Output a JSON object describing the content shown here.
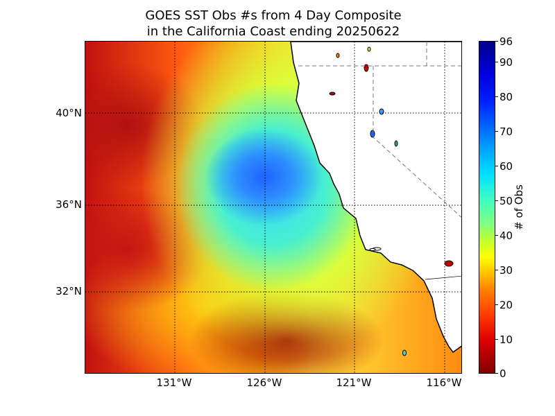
{
  "title": {
    "line1": "GOES SST Obs #s from 4 Day Composite",
    "line2": " in the California Coast ending 20250622"
  },
  "map": {
    "lat_labels": [
      "40°N",
      "36°N",
      "32°N"
    ],
    "lon_labels": [
      "131°W",
      "126°W",
      "121°W",
      "116°W"
    ],
    "land_color": "#ffffff",
    "colormap": "jet_reversed"
  },
  "colorbar": {
    "label": "# of Obs",
    "min": 0,
    "max": 96,
    "tick_labels": [
      "0",
      "10",
      "20",
      "30",
      "40",
      "50",
      "60",
      "70",
      "80",
      "90",
      "96"
    ],
    "colors": {
      "low": "#800000",
      "mid": "#80ff80",
      "high": "#00008c"
    }
  }
}
